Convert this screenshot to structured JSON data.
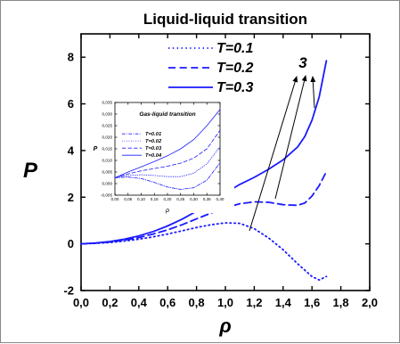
{
  "chart_data": [
    {
      "type": "line",
      "title": "Liquid-liquid transition",
      "xlabel": "ρ",
      "ylabel": "P",
      "xlim": [
        0.0,
        2.0
      ],
      "ylim": [
        -2,
        9
      ],
      "xticks": [
        "0,0",
        "0,2",
        "0,4",
        "0,6",
        "0,8",
        "1,0",
        "1,2",
        "1,4",
        "1,6",
        "1,8",
        "2,0"
      ],
      "yticks": [
        "-2",
        "0",
        "2",
        "4",
        "6",
        "8"
      ],
      "legend_position": "top-right",
      "annotation": "3",
      "series": [
        {
          "name": "T=0.1",
          "style": "dotted",
          "color": "#1a1aff",
          "x": [
            0.0,
            0.1,
            0.2,
            0.3,
            0.4,
            0.5,
            0.6,
            0.7,
            0.8,
            0.9,
            1.0,
            1.1,
            1.2,
            1.3,
            1.4,
            1.5,
            1.6,
            1.65,
            1.7
          ],
          "y": [
            0.0,
            0.02,
            0.06,
            0.12,
            0.2,
            0.3,
            0.42,
            0.56,
            0.7,
            0.82,
            0.9,
            0.88,
            0.65,
            0.25,
            -0.25,
            -0.85,
            -1.4,
            -1.55,
            -1.4
          ]
        },
        {
          "name": "T=0.2",
          "style": "dashed",
          "color": "#1a1aff",
          "x": [
            0.0,
            0.1,
            0.2,
            0.3,
            0.4,
            0.5,
            0.6,
            0.7,
            0.8,
            0.9,
            1.0,
            1.1,
            1.2,
            1.3,
            1.4,
            1.5,
            1.55,
            1.6,
            1.65,
            1.7
          ],
          "y": [
            0.0,
            0.03,
            0.08,
            0.16,
            0.27,
            0.42,
            0.6,
            0.82,
            1.07,
            1.32,
            1.55,
            1.72,
            1.8,
            1.78,
            1.68,
            1.65,
            1.75,
            2.05,
            2.5,
            3.1
          ]
        },
        {
          "name": "T=0.3",
          "style": "solid",
          "color": "#1a1aff",
          "x": [
            0.0,
            0.1,
            0.2,
            0.3,
            0.4,
            0.5,
            0.6,
            0.7,
            0.8,
            0.9,
            1.0,
            1.1,
            1.2,
            1.3,
            1.4,
            1.5,
            1.55,
            1.6,
            1.65,
            1.7
          ],
          "y": [
            0.0,
            0.04,
            0.1,
            0.2,
            0.34,
            0.53,
            0.77,
            1.06,
            1.4,
            1.78,
            2.18,
            2.55,
            2.85,
            3.2,
            3.6,
            4.15,
            4.6,
            5.3,
            6.3,
            7.85
          ]
        }
      ]
    },
    {
      "type": "line",
      "title": "Gas-liquid transition",
      "xlabel": "ρ",
      "ylabel": "P",
      "xlim": [
        0.0,
        0.4
      ],
      "ylim": [
        -0.005,
        0.035
      ],
      "xticks": [
        "0,00",
        "0,05",
        "0,10",
        "0,15",
        "0,20",
        "0,25",
        "0,30",
        "0,35",
        "0,40"
      ],
      "yticks": [
        "-0,005",
        "0,000",
        "0,005",
        "0,010",
        "0,015",
        "0,020",
        "0,025",
        "0,030",
        "0,035"
      ],
      "legend_position": "center",
      "series": [
        {
          "name": "T=0.01",
          "style": "dashdot",
          "color": "#1a1aff",
          "x": [
            0.0,
            0.05,
            0.1,
            0.15,
            0.2,
            0.25,
            0.3,
            0.35,
            0.4
          ],
          "y": [
            0.0025,
            0.0028,
            0.0022,
            0.0005,
            -0.0015,
            -0.0025,
            -0.0018,
            0.0015,
            0.009
          ]
        },
        {
          "name": "T=0.02",
          "style": "dotted",
          "color": "#1a1aff",
          "x": [
            0.0,
            0.05,
            0.1,
            0.15,
            0.2,
            0.25,
            0.3,
            0.35,
            0.4
          ],
          "y": [
            0.0025,
            0.0035,
            0.0038,
            0.0035,
            0.003,
            0.003,
            0.0045,
            0.0085,
            0.016
          ]
        },
        {
          "name": "T=0.03",
          "style": "dashed",
          "color": "#1a1aff",
          "x": [
            0.0,
            0.05,
            0.1,
            0.15,
            0.2,
            0.25,
            0.3,
            0.35,
            0.4
          ],
          "y": [
            0.0025,
            0.0042,
            0.0055,
            0.0065,
            0.0075,
            0.0088,
            0.011,
            0.015,
            0.023
          ]
        },
        {
          "name": "T=0.04",
          "style": "solid",
          "color": "#1a1aff",
          "x": [
            0.0,
            0.05,
            0.1,
            0.15,
            0.2,
            0.25,
            0.3,
            0.35,
            0.4
          ],
          "y": [
            0.0025,
            0.005,
            0.0072,
            0.0095,
            0.012,
            0.015,
            0.019,
            0.025,
            0.032
          ]
        }
      ]
    }
  ]
}
